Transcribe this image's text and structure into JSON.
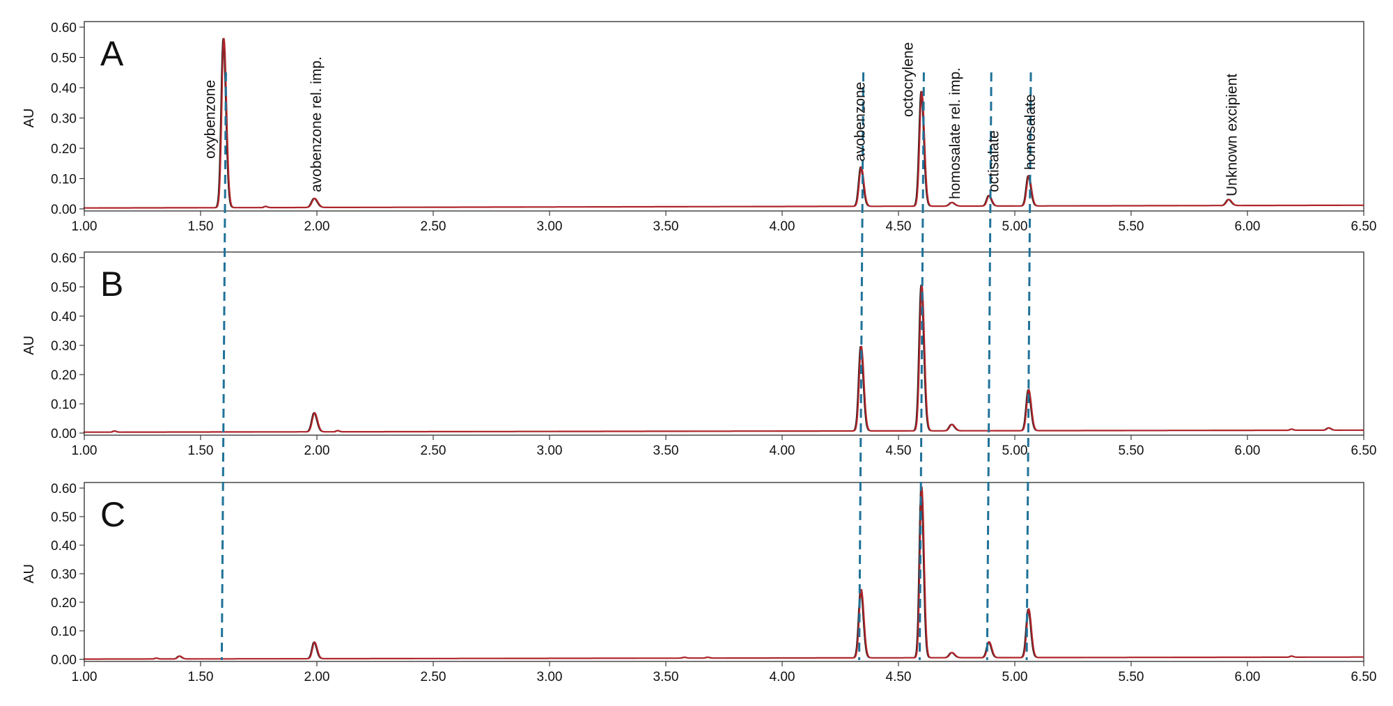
{
  "colors": {
    "trace_overlay": "#b0262c",
    "trace_base": "#1a1a1a",
    "guide_line": "#1f7299",
    "axis": "#3a3a3a"
  },
  "chart_data": {
    "type": "line",
    "xlim": [
      1.0,
      6.5
    ],
    "ylim": [
      0.0,
      0.6
    ],
    "x_ticks": [
      "1.00",
      "1.50",
      "2.00",
      "2.50",
      "3.00",
      "3.50",
      "4.00",
      "4.50",
      "5.00",
      "5.50",
      "6.00",
      "6.50"
    ],
    "y_ticks": [
      "0.00",
      "0.10",
      "0.20",
      "0.30",
      "0.40",
      "0.50",
      "0.60"
    ],
    "ylabel": "AU",
    "grid": false,
    "guide_lines_x": [
      1.6,
      4.34,
      4.6,
      4.89,
      5.06
    ],
    "peak_labels": [
      {
        "text": "oxybenzone",
        "x": 1.6
      },
      {
        "text": "avobenzone rel. imp.",
        "x": 2.0
      },
      {
        "text": "avobenzone",
        "x": 4.34
      },
      {
        "text": "octocrylene",
        "x": 4.6
      },
      {
        "text": "homosalate rel. imp.",
        "x": 4.73
      },
      {
        "text": "octisalate",
        "x": 4.89
      },
      {
        "text": "homosalate",
        "x": 5.06
      },
      {
        "text": "Unknown excipient",
        "x": 5.92
      }
    ],
    "panels": [
      {
        "label": "A",
        "baseline": {
          "start": 0.003,
          "end": 0.012
        },
        "peaks": [
          {
            "x": 1.6,
            "height": 0.56,
            "width": 0.009
          },
          {
            "x": 1.78,
            "height": 0.004,
            "width": 0.006
          },
          {
            "x": 1.99,
            "height": 0.03,
            "width": 0.011
          },
          {
            "x": 4.34,
            "height": 0.13,
            "width": 0.009
          },
          {
            "x": 4.6,
            "height": 0.38,
            "width": 0.009
          },
          {
            "x": 4.73,
            "height": 0.012,
            "width": 0.01
          },
          {
            "x": 4.89,
            "height": 0.035,
            "width": 0.009
          },
          {
            "x": 5.06,
            "height": 0.1,
            "width": 0.009
          },
          {
            "x": 5.92,
            "height": 0.02,
            "width": 0.01
          }
        ]
      },
      {
        "label": "B",
        "baseline": {
          "start": 0.003,
          "end": 0.01
        },
        "peaks": [
          {
            "x": 1.13,
            "height": 0.004,
            "width": 0.006
          },
          {
            "x": 1.99,
            "height": 0.065,
            "width": 0.01
          },
          {
            "x": 2.09,
            "height": 0.004,
            "width": 0.006
          },
          {
            "x": 4.34,
            "height": 0.29,
            "width": 0.009
          },
          {
            "x": 4.6,
            "height": 0.5,
            "width": 0.009
          },
          {
            "x": 4.73,
            "height": 0.022,
            "width": 0.01
          },
          {
            "x": 5.06,
            "height": 0.14,
            "width": 0.009
          },
          {
            "x": 6.19,
            "height": 0.004,
            "width": 0.006
          },
          {
            "x": 6.35,
            "height": 0.008,
            "width": 0.008
          }
        ]
      },
      {
        "label": "C",
        "baseline": {
          "start": 0.001,
          "end": 0.008
        },
        "peaks": [
          {
            "x": 1.31,
            "height": 0.003,
            "width": 0.006
          },
          {
            "x": 1.41,
            "height": 0.01,
            "width": 0.008
          },
          {
            "x": 1.99,
            "height": 0.058,
            "width": 0.009
          },
          {
            "x": 3.58,
            "height": 0.003,
            "width": 0.007
          },
          {
            "x": 3.68,
            "height": 0.003,
            "width": 0.007
          },
          {
            "x": 4.34,
            "height": 0.24,
            "width": 0.009
          },
          {
            "x": 4.6,
            "height": 0.6,
            "width": 0.008
          },
          {
            "x": 4.73,
            "height": 0.018,
            "width": 0.01
          },
          {
            "x": 4.89,
            "height": 0.055,
            "width": 0.009
          },
          {
            "x": 5.06,
            "height": 0.17,
            "width": 0.009
          },
          {
            "x": 6.19,
            "height": 0.004,
            "width": 0.006
          }
        ]
      }
    ]
  }
}
